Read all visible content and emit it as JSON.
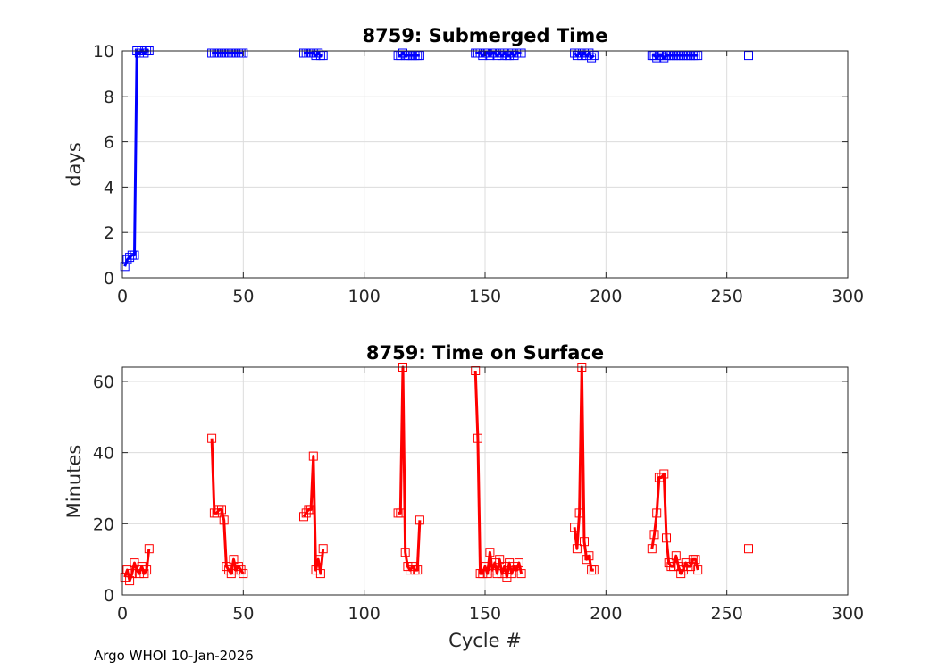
{
  "footer": "Argo WHOI 10-Jan-2026",
  "chart_data": [
    {
      "type": "line",
      "title": "8759: Submerged Time",
      "xlabel": "",
      "ylabel": "days",
      "xlim": [
        0,
        300
      ],
      "ylim": [
        0,
        10
      ],
      "xticks": [
        0,
        50,
        100,
        150,
        200,
        250,
        300
      ],
      "yticks": [
        0,
        2,
        4,
        6,
        8,
        10
      ],
      "grid": true,
      "legend": "none",
      "color": "#0000ff",
      "marker": "square",
      "line_segments": [
        [
          1,
          11
        ],
        [
          37,
          50
        ],
        [
          75,
          83
        ],
        [
          114,
          123
        ],
        [
          146,
          165
        ],
        [
          187,
          195
        ],
        [
          219,
          238
        ]
      ],
      "series": [
        {
          "x": [
            1,
            2,
            3,
            4,
            5,
            6,
            7,
            8,
            9,
            10,
            11,
            37,
            38,
            39,
            40,
            41,
            42,
            43,
            44,
            45,
            46,
            47,
            48,
            49,
            50,
            75,
            76,
            77,
            78,
            79,
            80,
            81,
            82,
            83,
            114,
            115,
            116,
            117,
            118,
            119,
            120,
            121,
            122,
            123,
            146,
            147,
            148,
            149,
            150,
            151,
            152,
            153,
            154,
            155,
            156,
            157,
            158,
            159,
            160,
            161,
            162,
            163,
            164,
            165,
            187,
            188,
            189,
            190,
            191,
            192,
            193,
            194,
            195,
            219,
            220,
            221,
            222,
            223,
            224,
            225,
            226,
            227,
            228,
            229,
            230,
            231,
            232,
            233,
            234,
            235,
            236,
            237,
            238,
            259
          ],
          "y": [
            0.5,
            0.8,
            0.9,
            1.0,
            1.0,
            10.0,
            9.9,
            10.0,
            9.9,
            10.0,
            10.0,
            9.9,
            9.9,
            9.9,
            9.9,
            9.9,
            9.9,
            9.9,
            9.9,
            9.9,
            9.9,
            9.9,
            9.9,
            9.9,
            9.9,
            9.9,
            9.9,
            9.9,
            9.9,
            9.9,
            9.8,
            9.9,
            9.8,
            9.8,
            9.8,
            9.8,
            9.9,
            9.8,
            9.8,
            9.8,
            9.8,
            9.8,
            9.8,
            9.8,
            9.9,
            9.9,
            9.9,
            9.8,
            9.9,
            9.9,
            9.8,
            9.9,
            9.9,
            9.8,
            9.9,
            9.8,
            9.9,
            9.8,
            9.8,
            9.9,
            9.8,
            9.9,
            9.9,
            9.9,
            9.9,
            9.8,
            9.9,
            9.8,
            9.9,
            9.8,
            9.9,
            9.7,
            9.8,
            9.8,
            9.8,
            9.7,
            9.8,
            9.8,
            9.7,
            9.8,
            9.8,
            9.8,
            9.8,
            9.8,
            9.8,
            9.8,
            9.8,
            9.8,
            9.8,
            9.8,
            9.8,
            9.8,
            9.8,
            9.8
          ]
        }
      ]
    },
    {
      "type": "line",
      "title": "8759: Time on Surface",
      "xlabel": "Cycle #",
      "ylabel": "Minutes",
      "xlim": [
        0,
        300
      ],
      "ylim": [
        0,
        64
      ],
      "xticks": [
        0,
        50,
        100,
        150,
        200,
        250,
        300
      ],
      "yticks": [
        0,
        20,
        40,
        60
      ],
      "grid": true,
      "legend": "none",
      "color": "#ff0000",
      "marker": "square",
      "line_segments": [
        [
          1,
          11
        ],
        [
          37,
          50
        ],
        [
          75,
          83
        ],
        [
          114,
          123
        ],
        [
          146,
          165
        ],
        [
          187,
          195
        ],
        [
          219,
          238
        ]
      ],
      "series": [
        {
          "x": [
            1,
            2,
            3,
            4,
            5,
            6,
            7,
            8,
            9,
            10,
            11,
            37,
            38,
            39,
            40,
            41,
            42,
            43,
            44,
            45,
            46,
            47,
            48,
            49,
            50,
            75,
            76,
            77,
            78,
            79,
            80,
            81,
            82,
            83,
            114,
            115,
            116,
            117,
            118,
            119,
            120,
            121,
            122,
            123,
            146,
            147,
            148,
            149,
            150,
            151,
            152,
            153,
            154,
            155,
            156,
            157,
            158,
            159,
            160,
            161,
            162,
            163,
            164,
            165,
            187,
            188,
            189,
            190,
            191,
            192,
            193,
            194,
            195,
            219,
            220,
            221,
            222,
            223,
            224,
            225,
            226,
            227,
            228,
            229,
            230,
            231,
            232,
            233,
            234,
            235,
            236,
            237,
            238,
            259
          ],
          "y": [
            5,
            7,
            4,
            6,
            9,
            7,
            6,
            8,
            6,
            7,
            13,
            44,
            23,
            23,
            24,
            24,
            21,
            8,
            7,
            6,
            10,
            7,
            8,
            7,
            6,
            22,
            23,
            24,
            24,
            39,
            7,
            10,
            6,
            13,
            23,
            23,
            64,
            12,
            8,
            7,
            8,
            7,
            7,
            21,
            63,
            44,
            6,
            6,
            8,
            6,
            12,
            7,
            9,
            6,
            10,
            6,
            8,
            5,
            9,
            6,
            8,
            7,
            9,
            6,
            19,
            13,
            23,
            64,
            15,
            10,
            11,
            7,
            7,
            13,
            17,
            23,
            33,
            33,
            34,
            16,
            9,
            8,
            8,
            11,
            8,
            6,
            7,
            9,
            8,
            8,
            10,
            10,
            7,
            13
          ]
        }
      ]
    }
  ]
}
